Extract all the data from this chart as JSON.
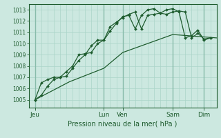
{
  "background_color": "#cce8e0",
  "grid_color_minor": "#aad4c8",
  "grid_color_major": "#88bbaa",
  "line_color": "#1e5c2e",
  "xlabel_text": "Pression niveau de la mer( hPa )",
  "ylim": [
    1004.3,
    1013.5
  ],
  "yticks": [
    1005,
    1006,
    1007,
    1008,
    1009,
    1010,
    1011,
    1012,
    1013
  ],
  "xlim": [
    -0.5,
    29.5
  ],
  "major_vlines": [
    0.5,
    11.5,
    14.5,
    22.5,
    27.5
  ],
  "day_tick_pos": [
    0.5,
    11.5,
    14.5,
    22.5,
    27.5
  ],
  "day_tick_labels": [
    "Jeu",
    "Lun",
    "Ven",
    "Sam",
    "Dim"
  ],
  "line1_x": [
    0.5,
    1.5,
    2.5,
    3.5,
    4.5,
    5.5,
    6.5,
    7.5,
    8.5,
    9.5,
    10.5,
    11.5,
    12.5,
    13.5,
    14.5,
    15.5,
    16.5,
    17.5,
    18.5,
    19.5,
    20.5,
    21.5,
    22.5,
    23.5,
    24.5,
    25.5,
    26.5,
    27.5,
    28.5
  ],
  "line1_y": [
    1005.0,
    1005.4,
    1006.2,
    1006.8,
    1007.0,
    1007.1,
    1007.8,
    1008.5,
    1009.0,
    1009.8,
    1010.3,
    1010.3,
    1011.1,
    1011.8,
    1012.4,
    1012.5,
    1011.3,
    1012.5,
    1013.0,
    1013.1,
    1012.7,
    1013.0,
    1013.1,
    1012.8,
    1010.5,
    1010.7,
    1011.2,
    1010.3,
    1010.5
  ],
  "line2_x": [
    0.5,
    1.5,
    2.5,
    3.5,
    4.5,
    5.5,
    6.5,
    7.5,
    8.5,
    9.5,
    10.5,
    11.5,
    12.5,
    13.5,
    14.5,
    15.5,
    16.5,
    17.5,
    18.5,
    19.5,
    20.5,
    21.5,
    22.5,
    23.5,
    24.5,
    25.5,
    26.5,
    27.5,
    28.5
  ],
  "line2_y": [
    1005.0,
    1006.5,
    1006.8,
    1007.0,
    1007.0,
    1007.5,
    1008.0,
    1009.0,
    1009.1,
    1009.2,
    1010.0,
    1010.3,
    1011.5,
    1011.9,
    1012.3,
    1012.6,
    1012.8,
    1011.3,
    1012.5,
    1012.6,
    1012.7,
    1012.6,
    1012.8,
    1012.9,
    1012.8,
    1010.5,
    1010.9,
    1010.4,
    1010.5
  ],
  "line3_x": [
    0.5,
    6.0,
    11.5,
    14.5,
    19.5,
    22.5,
    29.5
  ],
  "line3_y": [
    1005.0,
    1006.6,
    1007.8,
    1009.2,
    1010.2,
    1010.8,
    1010.5
  ]
}
